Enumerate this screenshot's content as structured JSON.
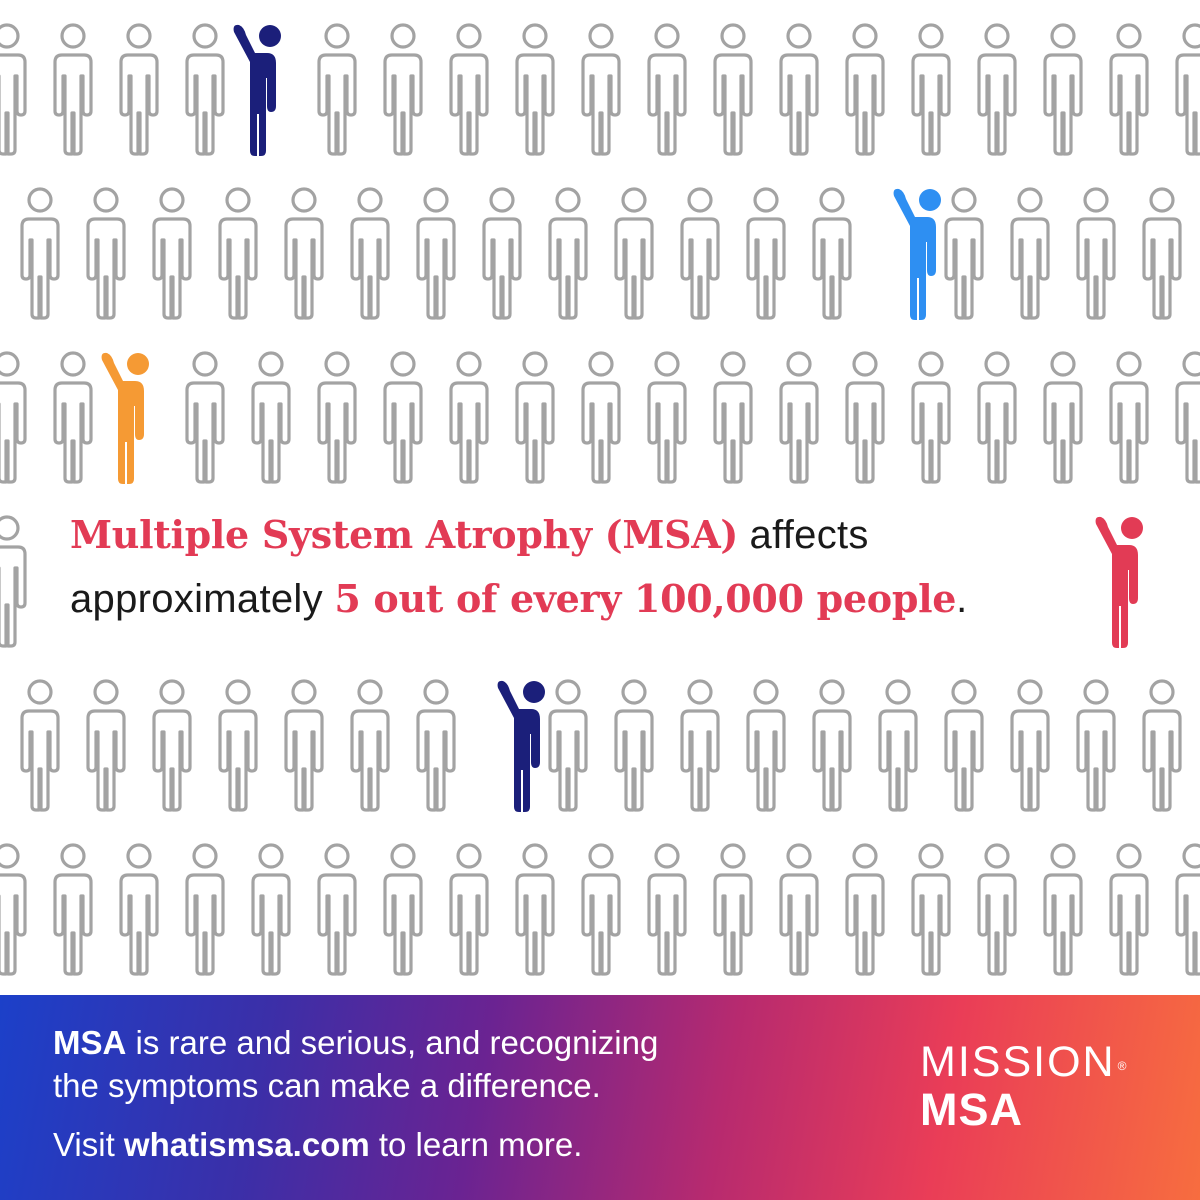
{
  "headline": {
    "emphasis_1": "Multiple System Atrophy (MSA)",
    "plain_1": " affects",
    "plain_2": "approximately ",
    "emphasis_2": "5 out of every 100,000 people",
    "end_punct": "."
  },
  "statistic": {
    "affected": 5,
    "population": 100000
  },
  "highlighted_people": [
    {
      "color": "#1b1f7a"
    },
    {
      "color": "#2e8ff2"
    },
    {
      "color": "#f59a34"
    },
    {
      "color": "#e23b55"
    },
    {
      "color": "#1b1f7a"
    }
  ],
  "banner": {
    "line1_bold": "MSA",
    "line1_rest": " is rare and serious, and recognizing",
    "line2": "the symptoms can make a difference.",
    "visit_prefix": "Visit ",
    "visit_link": "whatismsa.com",
    "visit_suffix": " to learn more."
  },
  "brand": {
    "line1": "MISSION",
    "registered": "®",
    "line2": "MSA"
  },
  "colors": {
    "accent_red": "#e23b55",
    "outline_gray": "#a3a3a3",
    "banner_start": "#1c40c9",
    "banner_end": "#f76d3f"
  }
}
